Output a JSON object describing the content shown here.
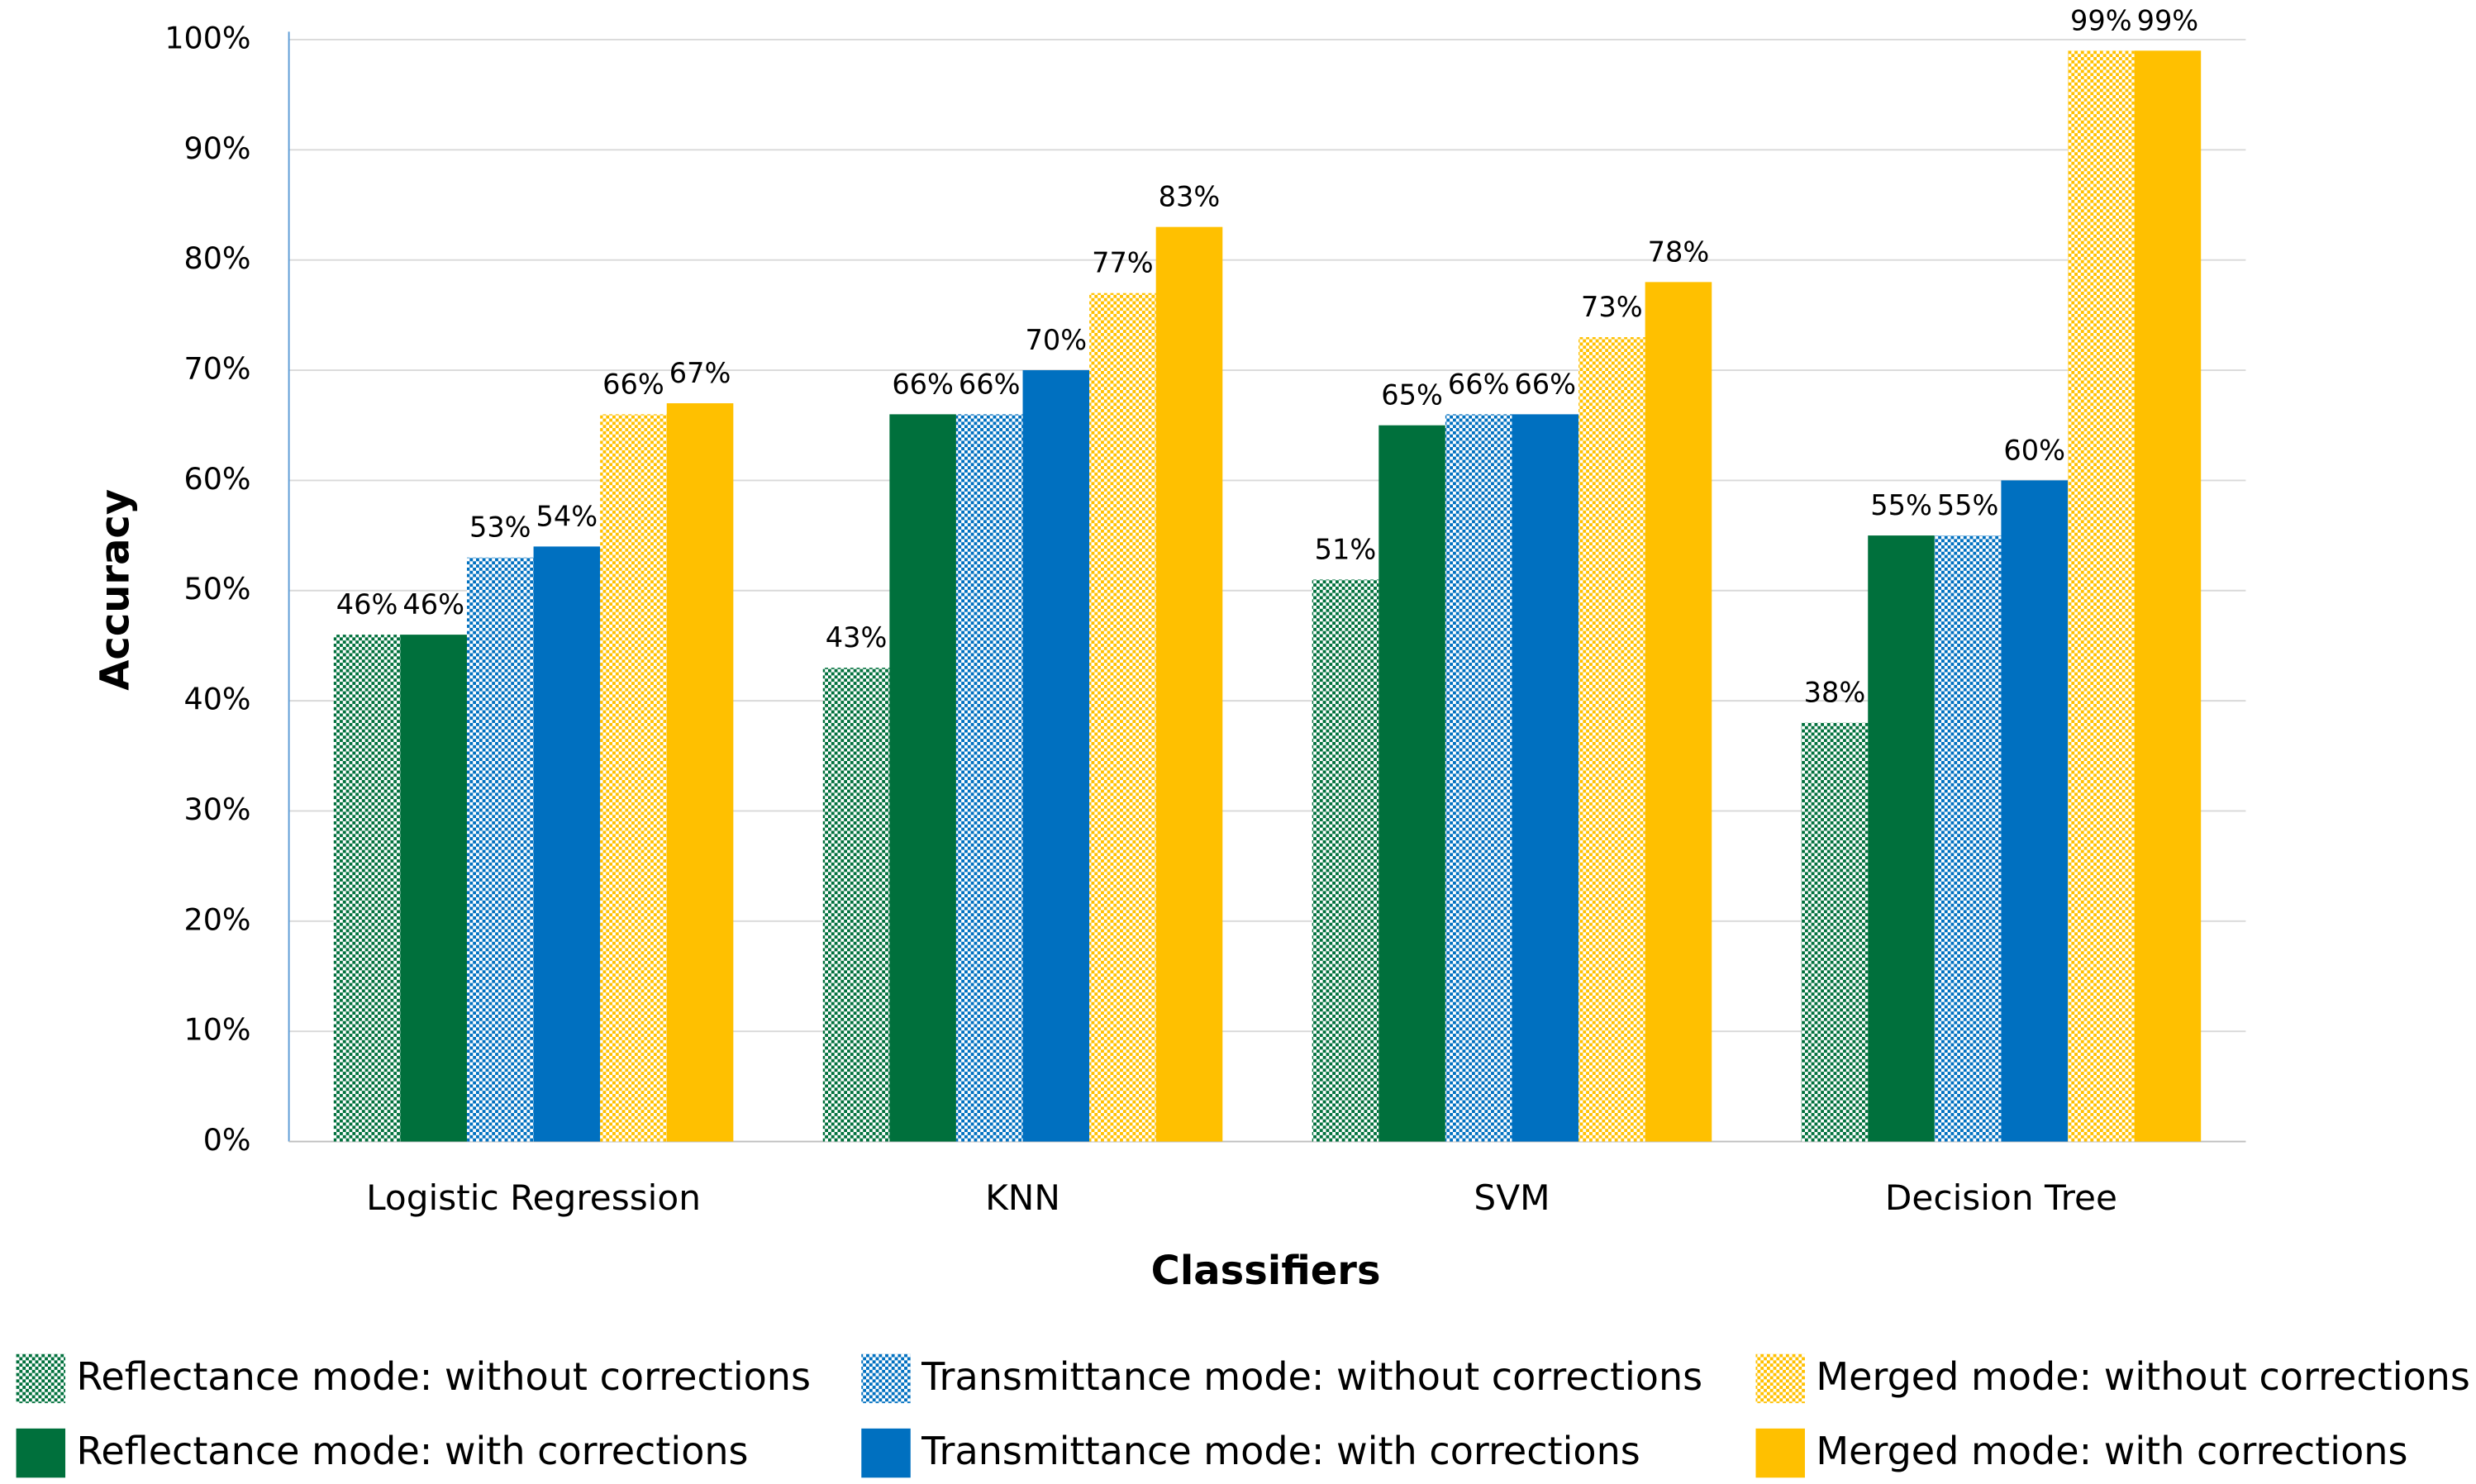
{
  "chart_data": {
    "type": "bar",
    "x_label": "Classifiers",
    "y_label": "Accuracy",
    "categories": [
      "Logistic Regression",
      "KNN",
      "SVM",
      "Decision Tree"
    ],
    "series": [
      {
        "name": "Reflectance mode: without corrections",
        "color": "#00703c",
        "pattern": "dotted",
        "values": [
          46,
          43,
          51,
          38
        ],
        "value_labels": [
          "46%",
          "43%",
          "51%",
          "38%"
        ]
      },
      {
        "name": "Reflectance mode: with corrections",
        "color": "#00703c",
        "pattern": "solid",
        "values": [
          46,
          66,
          65,
          55
        ],
        "value_labels": [
          "46%",
          "66%",
          "65%",
          "55%"
        ]
      },
      {
        "name": "Transmittance mode: without corrections",
        "color": "#0070c0",
        "pattern": "dotted",
        "values": [
          53,
          66,
          66,
          55
        ],
        "value_labels": [
          "53%",
          "66%",
          "66%",
          "55%"
        ]
      },
      {
        "name": "Transmittance mode: with corrections",
        "color": "#0070c0",
        "pattern": "solid",
        "values": [
          54,
          70,
          66,
          60
        ],
        "value_labels": [
          "54%",
          "70%",
          "66%",
          "60%"
        ]
      },
      {
        "name": "Merged mode: without corrections",
        "color": "#ffc000",
        "pattern": "dotted",
        "values": [
          66,
          77,
          73,
          99
        ],
        "value_labels": [
          "66%",
          "77%",
          "73%",
          "99%"
        ]
      },
      {
        "name": "Merged mode: with corrections",
        "color": "#ffc000",
        "pattern": "solid",
        "values": [
          67,
          83,
          78,
          99
        ],
        "value_labels": [
          "67%",
          "83%",
          "78%",
          "99%"
        ]
      }
    ],
    "ylim": [
      0,
      100
    ],
    "yticks": [
      {
        "value": 0,
        "label": "0%"
      },
      {
        "value": 10,
        "label": "10%"
      },
      {
        "value": 20,
        "label": "20%"
      },
      {
        "value": 30,
        "label": "30%"
      },
      {
        "value": 40,
        "label": "40%"
      },
      {
        "value": 50,
        "label": "50%"
      },
      {
        "value": 60,
        "label": "60%"
      },
      {
        "value": 70,
        "label": "70%"
      },
      {
        "value": 80,
        "label": "80%"
      },
      {
        "value": 90,
        "label": "90%"
      },
      {
        "value": 100,
        "label": "100%"
      }
    ],
    "grid": true
  }
}
